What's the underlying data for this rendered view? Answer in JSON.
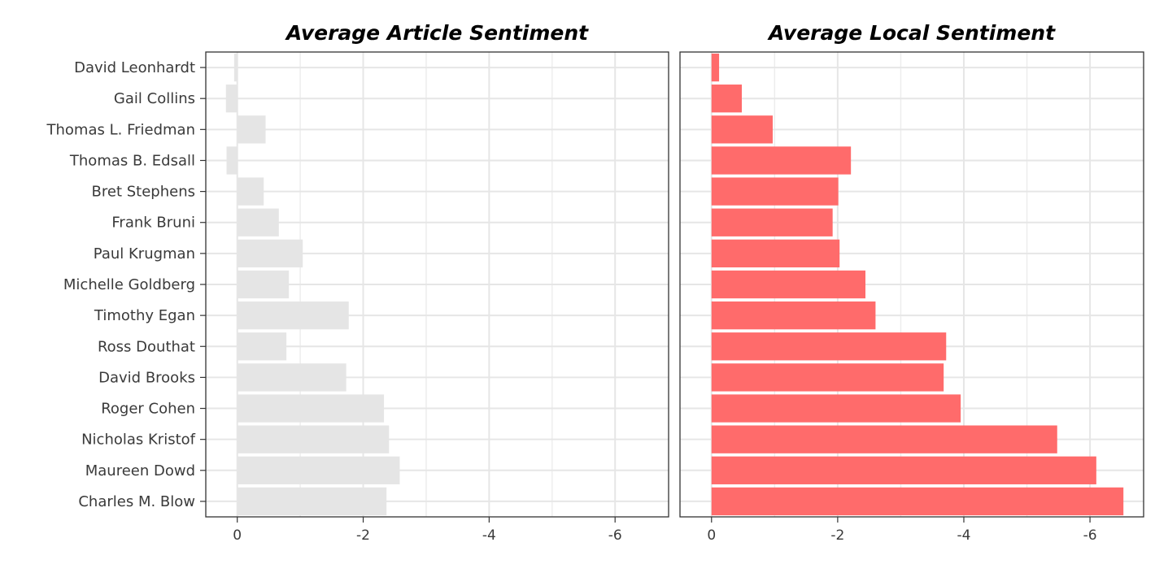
{
  "chart_data": {
    "type": "bar",
    "orientation": "horizontal",
    "categories": [
      "David Leonhardt",
      "Gail Collins",
      "Thomas L. Friedman",
      "Thomas B. Edsall",
      "Bret Stephens",
      "Frank Bruni",
      "Paul Krugman",
      "Michelle Goldberg",
      "Timothy Egan",
      "Ross Douthat",
      "David Brooks",
      "Roger Cohen",
      "Nicholas Kristof",
      "Maureen Dowd",
      "Charles M. Blow"
    ],
    "panels": [
      {
        "title": "Average Article Sentiment",
        "values": [
          0.05,
          0.18,
          -0.45,
          0.17,
          -0.42,
          -0.66,
          -1.04,
          -0.82,
          -1.77,
          -0.78,
          -1.73,
          -2.33,
          -2.41,
          -2.58,
          -2.37
        ],
        "xlim": [
          0.5,
          -6.85
        ],
        "xticks": [
          0,
          -2,
          -4,
          -6
        ],
        "xtick_labels": [
          "0",
          "-2",
          "-4",
          "-6"
        ],
        "bar_color": "#e5e5e5",
        "grid": true
      },
      {
        "title": "Average Local Sentiment",
        "values": [
          -0.12,
          -0.48,
          -0.97,
          -2.21,
          -2.01,
          -1.92,
          -2.03,
          -2.44,
          -2.6,
          -3.72,
          -3.68,
          -3.95,
          -5.48,
          -6.1,
          -6.53
        ],
        "xlim": [
          0.5,
          -6.85
        ],
        "xticks": [
          0,
          -2,
          -4,
          -6
        ],
        "xtick_labels": [
          "0",
          "-2",
          "-4",
          "-6"
        ],
        "bar_color": "#ff6b6b",
        "grid": true
      }
    ]
  }
}
